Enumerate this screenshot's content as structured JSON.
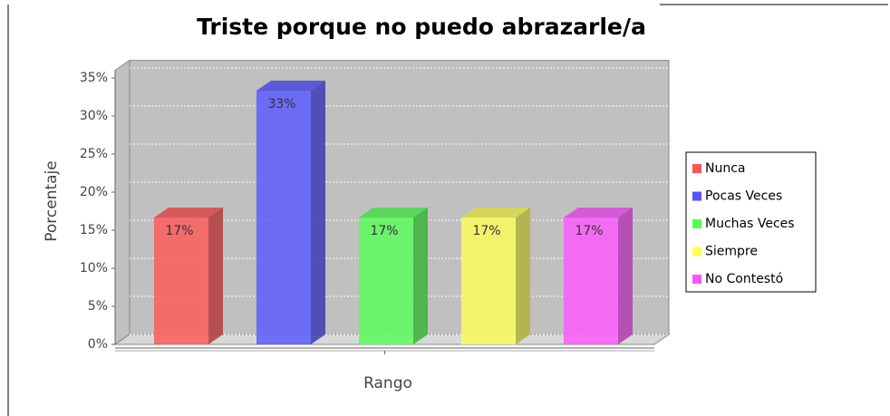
{
  "chart_data": {
    "type": "bar3d",
    "title": "Triste porque no puedo abrazarle/a",
    "ylabel": "Porcentaje",
    "xlabel": "Rango",
    "series": [
      {
        "name": "Nunca",
        "color": "#ff5555",
        "values": [
          16.67
        ],
        "value_labels": [
          "17%"
        ]
      },
      {
        "name": "Pocas Veces",
        "color": "#5555ff",
        "values": [
          33.33
        ],
        "value_labels": [
          "33%"
        ]
      },
      {
        "name": "Muchas Veces",
        "color": "#55ff55",
        "values": [
          16.67
        ],
        "value_labels": [
          "17%"
        ]
      },
      {
        "name": "Siempre",
        "color": "#ffff55",
        "values": [
          16.67
        ],
        "value_labels": [
          "17%"
        ]
      },
      {
        "name": "No Contestó",
        "color": "#ff55ff",
        "values": [
          16.67
        ],
        "value_labels": [
          "17%"
        ]
      }
    ],
    "ylim": [
      0,
      36
    ],
    "yticks": [
      {
        "value": 0,
        "label": "0%"
      },
      {
        "value": 5,
        "label": "5%"
      },
      {
        "value": 10,
        "label": "10%"
      },
      {
        "value": 15,
        "label": "15%"
      },
      {
        "value": 20,
        "label": "20%"
      },
      {
        "value": 25,
        "label": "25%"
      },
      {
        "value": 30,
        "label": "30%"
      },
      {
        "value": 35,
        "label": "35%"
      }
    ],
    "grid": true,
    "legend": "right"
  }
}
